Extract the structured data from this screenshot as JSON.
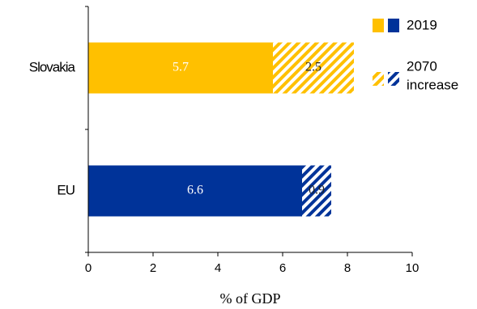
{
  "chart_data": {
    "type": "bar",
    "orientation": "horizontal",
    "stacked": true,
    "categories": [
      "Slovakia",
      "EU"
    ],
    "series": [
      {
        "name": "2019",
        "values": [
          5.7,
          6.6
        ],
        "colors": [
          "#FFC000",
          "#003399"
        ],
        "pattern": "solid"
      },
      {
        "name": "2070 increase",
        "values": [
          2.5,
          0.9
        ],
        "colors": [
          "#FFC000",
          "#003399"
        ],
        "pattern": "hatched"
      }
    ],
    "data_labels": [
      [
        "5.7",
        "6.6"
      ],
      [
        "2.5",
        "0.9"
      ]
    ],
    "xlabel": "% of GDP",
    "xlim": [
      0,
      10
    ],
    "xticks": [
      "0",
      "2",
      "4",
      "6",
      "8",
      "10"
    ],
    "grid": false,
    "legend": {
      "placement": "right",
      "entries": [
        {
          "label": "2019",
          "pattern": "solid"
        },
        {
          "label_lines": [
            "2070",
            "increase"
          ],
          "pattern": "hatched"
        }
      ]
    },
    "colors": {
      "slovakia": "#FFC000",
      "eu": "#003399"
    }
  }
}
